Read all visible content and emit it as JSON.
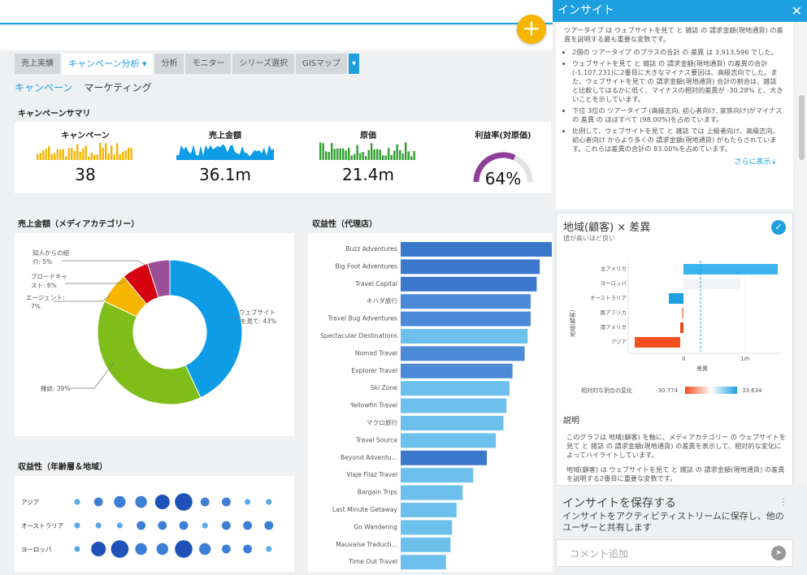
{
  "tabs": [
    "売上実績",
    "キャンペーン分析 ▾",
    "分析",
    "モニター",
    "シリーズ選択",
    "GISマップ",
    "▾"
  ],
  "subnav": [
    "キャンペーン",
    "マーケティング"
  ],
  "summary": {
    "title": "キャンペーンサマリ",
    "kpis": [
      {
        "label": "キャンペーン",
        "value": "38"
      },
      {
        "label": "売上金額",
        "value": "36.1m"
      },
      {
        "label": "原価",
        "value": "21.4m"
      },
      {
        "label": "利益率(対原価)",
        "value": "64%",
        "gauge": 0.64
      }
    ]
  },
  "donut": {
    "title": "売上金額（メディアカテゴリー）",
    "slices": [
      {
        "label": "ウェブサイトを見て",
        "value": 43,
        "color": "#0e9ce6"
      },
      {
        "label": "雑誌",
        "value": 39,
        "color": "#7fbe1a"
      },
      {
        "label": "エージェント",
        "value": 7,
        "color": "#f7b500"
      },
      {
        "label": "ブロードキャスト",
        "value": 6,
        "color": "#d7000f"
      },
      {
        "label": "知人からの紹介",
        "value": 5,
        "color": "#9b4f96"
      }
    ],
    "labels": [
      "ウェブサイト",
      "を見て: 43%",
      "雑誌: 39%",
      "エージェント:",
      "7%",
      "ブロードキャ",
      "スト: 6%",
      "知人からの紹",
      "介: 5%"
    ]
  },
  "bars": {
    "title": "収益性（代理店）",
    "items": [
      {
        "label": "Buzz Adventures",
        "value": 100,
        "c": "#3b78cc"
      },
      {
        "label": "Big Foot Adventures",
        "value": 92,
        "c": "#3b78cc"
      },
      {
        "label": "Travel Capital",
        "value": 90,
        "c": "#3b78cc"
      },
      {
        "label": "キハダ旅行",
        "value": 86,
        "c": "#4a8ad7"
      },
      {
        "label": "Travel Bug Adventures",
        "value": 86,
        "c": "#4a8ad7"
      },
      {
        "label": "Spectacular Destinations",
        "value": 84,
        "c": "#6ec0ec"
      },
      {
        "label": "Nomad Travel",
        "value": 82,
        "c": "#4a8ad7"
      },
      {
        "label": "Explorer Travel",
        "value": 74,
        "c": "#4a8ad7"
      },
      {
        "label": "Ski Zone",
        "value": 72,
        "c": "#6ec0ec"
      },
      {
        "label": "Yellowfin Travel",
        "value": 70,
        "c": "#6ec0ec"
      },
      {
        "label": "マクロ旅行",
        "value": 68,
        "c": "#6ec0ec"
      },
      {
        "label": "Travel Source",
        "value": 63,
        "c": "#6ec0ec"
      },
      {
        "label": "Beyond Adventu...",
        "value": 57,
        "c": "#3b78cc"
      },
      {
        "label": "Viaje Filaz Travel",
        "value": 48,
        "c": "#6ec0ec"
      },
      {
        "label": "Bargain Trips",
        "value": 41,
        "c": "#6ec0ec"
      },
      {
        "label": "Last Minute Getaway",
        "value": 37,
        "c": "#6ec0ec"
      },
      {
        "label": "Go Wandering",
        "value": 34,
        "c": "#6ec0ec"
      },
      {
        "label": "Mauvaise Traducti...",
        "value": 33,
        "c": "#6ec0ec"
      },
      {
        "label": "Time Out Travel",
        "value": 30,
        "c": "#6ec0ec"
      }
    ]
  },
  "bubbles": {
    "title": "収益性（年齢層＆地域）",
    "rows": [
      {
        "label": "アジア",
        "sizes": [
          2,
          3,
          4,
          4,
          5,
          6,
          3,
          3,
          2,
          2
        ]
      },
      {
        "label": "オーストラリア",
        "sizes": [
          2,
          2,
          2,
          3,
          3,
          3,
          2,
          3,
          3,
          3
        ]
      },
      {
        "label": "ヨーロッパ",
        "sizes": [
          2,
          5,
          6,
          4,
          4,
          6,
          4,
          3,
          3,
          2
        ]
      }
    ]
  },
  "panel": {
    "title": "インサイト",
    "intro": "ツアータイプ は ウェブサイトを見て と 雑誌 の 請求金額(現地通貨) の差異を説明する最も重要な変数です。",
    "points": [
      "2個の ツアータイプ のプラスの合計 の 差異 は 3,913,596 でした。",
      "ウェブサイトを見て と 雑誌 の 請求金額(現地通貨) の差異の合計(-1,107,231)に2番目に大きなマイナス要因は、高級志向でした。また、ウェブサイトを見て の 請求金額(現地通貨) 合計の割合は、雑誌 と比較してはるかに低く、マイナスの相対的差異が -30.28% と、大きいことを示しています。",
      "下位 3位の ツアータイプ (高級志向, 初心者向け, 家族向け)がマイナスの 差異 の ほぼすべて (98.00%)を占めています。",
      "比例して、ウェブサイトを見て と 雑誌 では 上級者向け、高級志向、初心者向け からより多くの 請求金額(現地通貨) がもたらされています。これらは差異の合計の 83.00%を占めています。"
    ],
    "more": "さらに表示↓",
    "chart2": {
      "title": "地域(顧客) × 差異",
      "subtitle": "値が高いほど良い",
      "ylabel": "地域(顧客)",
      "xlabel": "差異",
      "cats": [
        "北アメリカ",
        "ヨーロッパ",
        "オーストラリア",
        "南アフリカ",
        "南アメリカ",
        "アジア"
      ],
      "ticks": [
        "0",
        "1m"
      ],
      "legend": "相対的な割合の変化",
      "lmin": "-30.774",
      "lmax": "33.634"
    },
    "desc_title": "説明",
    "desc": "このグラフは 地域(顧客) を軸に、メディアカテゴリー の ウェブサイトを見て と 雑誌 の 請求金額(現地通貨) の差異を表示して、相対的な変化によってハイライトしています。",
    "desc2": "地域(顧客) は ウェブサイトを見て と 雑誌 の 請求金額(現地通貨) の差異を説明する2番目に重要な変数です。",
    "save_title": "インサイトを保存する",
    "save_desc": "インサイトをアクティビティストリームに保存し、他のユーザーと共有します",
    "comment": "コメント追加"
  }
}
